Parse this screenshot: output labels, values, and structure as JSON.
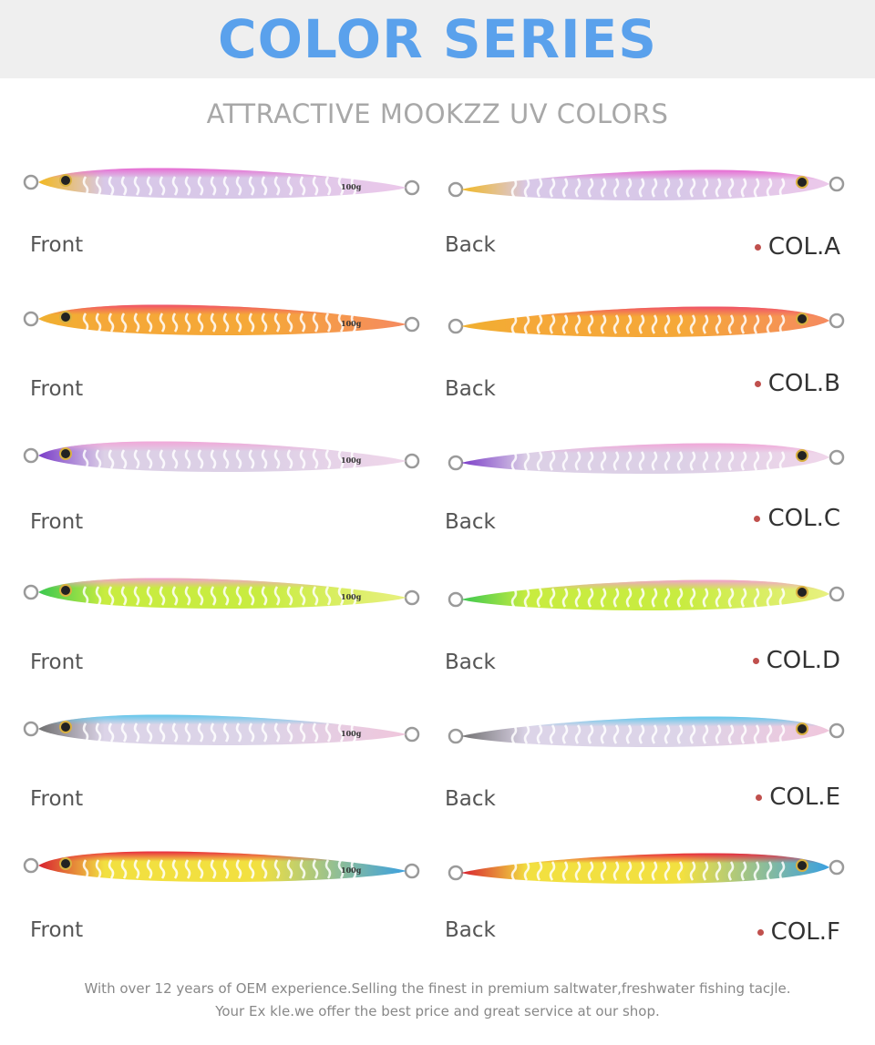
{
  "header": {
    "title": "COLOR SERIES",
    "title_color": "#5aa1ec"
  },
  "subtitle": "ATTRACTIVE MOOKZZ UV COLORS",
  "side_labels": {
    "front": "Front",
    "back": "Back"
  },
  "lure_mark": "100g",
  "accent_dot_color": "#c0504d",
  "colors": [
    {
      "code": "COL.A",
      "head": "#f2b820",
      "body_top": "#e86bd3",
      "body_mid": "#d8c8e8",
      "tail": "#ecc8ea",
      "stripe": "#ffffff"
    },
    {
      "code": "COL.B",
      "head": "#f0b030",
      "body_top": "#f0506a",
      "body_mid": "#f5a838",
      "tail": "#f58a60",
      "stripe": "#ffffff"
    },
    {
      "code": "COL.C",
      "head": "#7a3cc8",
      "body_top": "#f2a6d8",
      "body_mid": "#dcd0e6",
      "tail": "#f0d6ea",
      "stripe": "#ffffff"
    },
    {
      "code": "COL.D",
      "head": "#3ac850",
      "body_top": "#f2a0d0",
      "body_mid": "#c8ec40",
      "tail": "#e8f080",
      "stripe": "#ffffff"
    },
    {
      "code": "COL.E",
      "head": "#707070",
      "body_top": "#60c8ec",
      "body_mid": "#dcd4e8",
      "tail": "#f0c6dc",
      "stripe": "#ffffff"
    },
    {
      "code": "COL.F",
      "head": "#d82030",
      "body_top": "#e82840",
      "body_mid": "#f2e040",
      "tail": "#3aa0e0",
      "stripe": "#ffffff"
    }
  ],
  "footer": {
    "line1": "With over 12 years of OEM experience.Selling the finest in premium saltwater,freshwater fishing tacjle.",
    "line2": "Your Ex kle.we offer the best price and great service at our shop."
  }
}
